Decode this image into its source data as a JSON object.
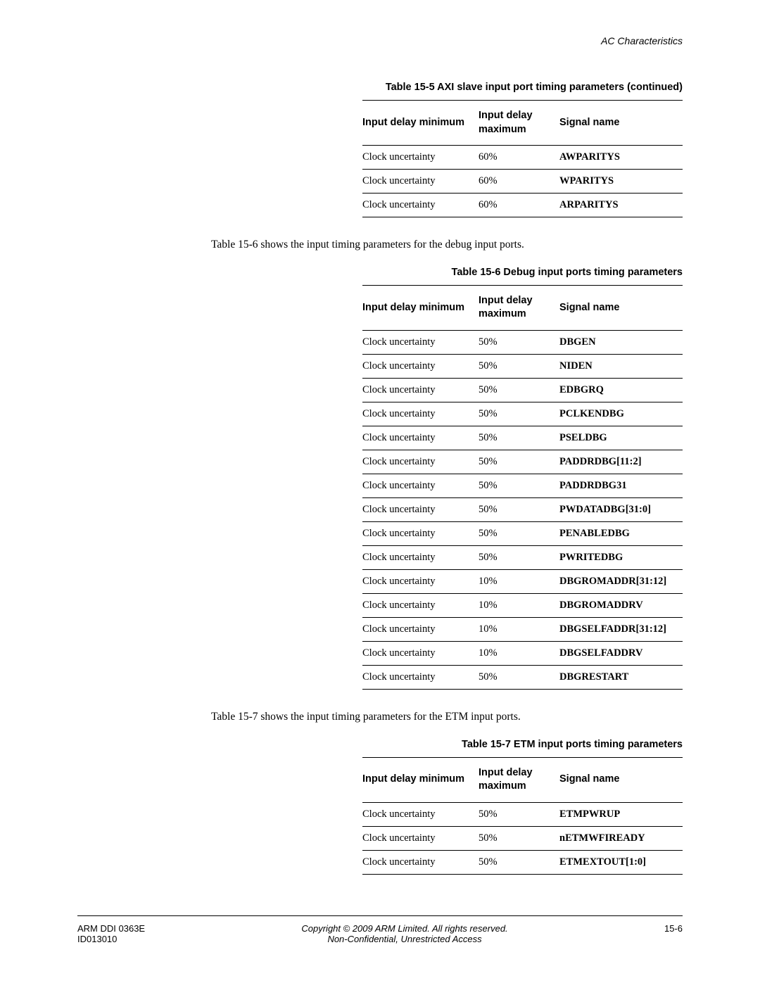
{
  "header": {
    "section": "AC Characteristics"
  },
  "tables": {
    "t1": {
      "caption": "Table 15-5 AXI slave input port timing parameters (continued)",
      "headers": {
        "c1": "Input delay minimum",
        "c2": "Input delay maximum",
        "c3": "Signal name"
      },
      "rows": [
        {
          "c1": "Clock uncertainty",
          "c2": "60%",
          "c3": "AWPARITYS"
        },
        {
          "c1": "Clock uncertainty",
          "c2": "60%",
          "c3": "WPARITYS"
        },
        {
          "c1": "Clock uncertainty",
          "c2": "60%",
          "c3": "ARPARITYS"
        }
      ]
    },
    "t2": {
      "caption": "Table 15-6 Debug input ports timing parameters",
      "headers": {
        "c1": "Input delay minimum",
        "c2": "Input delay maximum",
        "c3": "Signal name"
      },
      "rows": [
        {
          "c1": "Clock uncertainty",
          "c2": "50%",
          "c3": "DBGEN"
        },
        {
          "c1": "Clock uncertainty",
          "c2": "50%",
          "c3": "NIDEN"
        },
        {
          "c1": "Clock uncertainty",
          "c2": "50%",
          "c3": "EDBGRQ"
        },
        {
          "c1": "Clock uncertainty",
          "c2": "50%",
          "c3": "PCLKENDBG"
        },
        {
          "c1": "Clock uncertainty",
          "c2": "50%",
          "c3": "PSELDBG"
        },
        {
          "c1": "Clock uncertainty",
          "c2": "50%",
          "c3": "PADDRDBG[11:2]"
        },
        {
          "c1": "Clock uncertainty",
          "c2": "50%",
          "c3": "PADDRDBG31"
        },
        {
          "c1": "Clock uncertainty",
          "c2": "50%",
          "c3": "PWDATADBG[31:0]"
        },
        {
          "c1": "Clock uncertainty",
          "c2": "50%",
          "c3": "PENABLEDBG"
        },
        {
          "c1": "Clock uncertainty",
          "c2": "50%",
          "c3": "PWRITEDBG"
        },
        {
          "c1": "Clock uncertainty",
          "c2": "10%",
          "c3": "DBGROMADDR[31:12]"
        },
        {
          "c1": "Clock uncertainty",
          "c2": "10%",
          "c3": "DBGROMADDRV"
        },
        {
          "c1": "Clock uncertainty",
          "c2": "10%",
          "c3": "DBGSELFADDR[31:12]"
        },
        {
          "c1": "Clock uncertainty",
          "c2": "10%",
          "c3": "DBGSELFADDRV"
        },
        {
          "c1": "Clock uncertainty",
          "c2": "50%",
          "c3": "DBGRESTART"
        }
      ]
    },
    "t3": {
      "caption": "Table 15-7 ETM input ports timing parameters",
      "headers": {
        "c1": "Input delay minimum",
        "c2": "Input delay maximum",
        "c3": "Signal name"
      },
      "rows": [
        {
          "c1": "Clock uncertainty",
          "c2": "50%",
          "c3": "ETMPWRUP"
        },
        {
          "c1": "Clock uncertainty",
          "c2": "50%",
          "c3": "nETMWFIREADY"
        },
        {
          "c1": "Clock uncertainty",
          "c2": "50%",
          "c3": "ETMEXTOUT[1:0]"
        }
      ]
    }
  },
  "paragraphs": {
    "p1": "Table 15-6 shows the input timing parameters for the debug input ports.",
    "p2": "Table 15-7 shows the input timing parameters for the ETM input ports."
  },
  "footer": {
    "left1": "ARM DDI 0363E",
    "left2": "ID013010",
    "center1": "Copyright © 2009 ARM Limited. All rights reserved.",
    "center2": "Non-Confidential, Unrestricted Access",
    "right": "15-6"
  }
}
